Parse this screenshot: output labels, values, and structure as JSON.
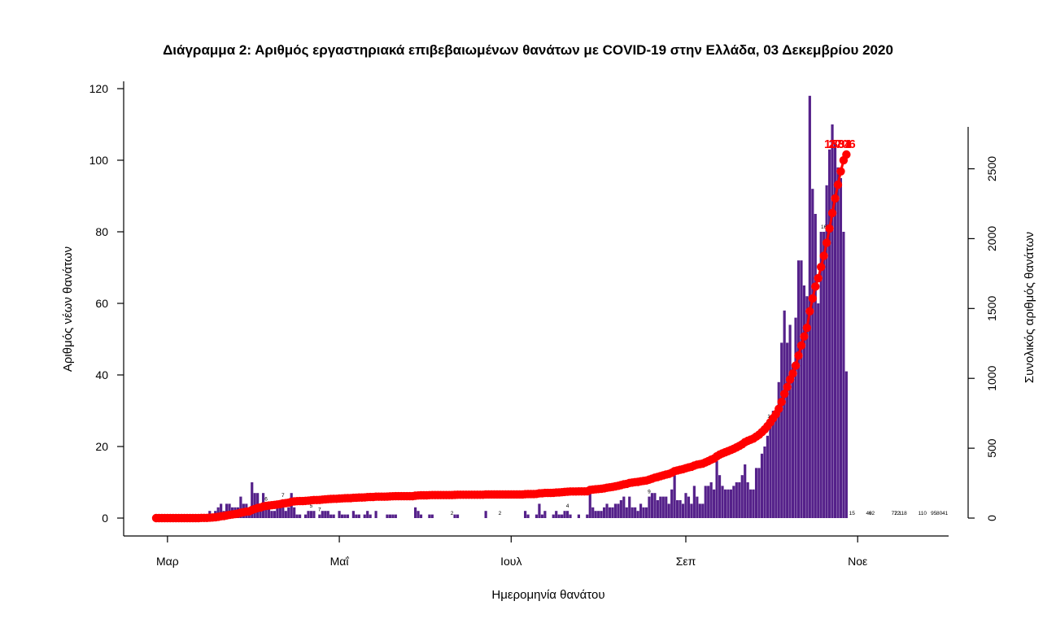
{
  "chart_data": {
    "type": "bar+line",
    "title": "Διάγραμμα 2: Αριθμός εργαστηριακά επιβεβαιωμένων θανάτων με COVID-19 στην Ελλάδα, 03 Δεκεμβρίου 2020",
    "xlabel": "Ημερομηνία θανάτου",
    "ylabel_left": "Αριθμός νέων θανάτων",
    "ylabel_right": "Συνολικός αριθμός θανάτων",
    "x_start": "2020-02-26",
    "x_end": "2020-12-02",
    "x_tick_labels": [
      {
        "date": "2020-03-01",
        "label": "Μαρ"
      },
      {
        "date": "2020-05-01",
        "label": "Μαΐ"
      },
      {
        "date": "2020-07-01",
        "label": "Ιουλ"
      },
      {
        "date": "2020-09-01",
        "label": "Σεπ"
      },
      {
        "date": "2020-11-01",
        "label": "Νοε"
      }
    ],
    "ylim_left": [
      0,
      120
    ],
    "yticks_left": [
      0,
      20,
      40,
      60,
      80,
      100,
      120
    ],
    "ylim_right": [
      0,
      2800
    ],
    "yticks_right": [
      0,
      500,
      1000,
      1500,
      2000,
      2500
    ],
    "bar_color": "#55218a",
    "line_color": "#ff0000",
    "daily_deaths": [
      0,
      0,
      0,
      0,
      0,
      0,
      0,
      0,
      0,
      0,
      0,
      0,
      0,
      0,
      0,
      0,
      1,
      0,
      0,
      2,
      1,
      2,
      3,
      4,
      2,
      4,
      4,
      3,
      3,
      3,
      6,
      4,
      4,
      2,
      10,
      7,
      7,
      4,
      7,
      4,
      3,
      2,
      2,
      3,
      3,
      5,
      2,
      3,
      7,
      3,
      1,
      1,
      0,
      1,
      2,
      2,
      2,
      0,
      1,
      2,
      2,
      2,
      1,
      1,
      0,
      2,
      1,
      1,
      1,
      0,
      2,
      1,
      1,
      0,
      1,
      2,
      1,
      0,
      2,
      0,
      0,
      0,
      1,
      1,
      1,
      1,
      0,
      0,
      0,
      0,
      0,
      0,
      3,
      2,
      1,
      0,
      0,
      1,
      1,
      0,
      0,
      0,
      0,
      0,
      0,
      0,
      1,
      1,
      0,
      0,
      0,
      0,
      0,
      0,
      0,
      0,
      0,
      2,
      0,
      0,
      0,
      0,
      0,
      0,
      0,
      0,
      0,
      0,
      0,
      0,
      0,
      2,
      1,
      0,
      0,
      1,
      4,
      1,
      2,
      0,
      0,
      1,
      2,
      1,
      1,
      2,
      2,
      1,
      0,
      0,
      1,
      0,
      0,
      1,
      9,
      3,
      2,
      2,
      2,
      3,
      4,
      3,
      3,
      4,
      4,
      5,
      6,
      3,
      6,
      3,
      3,
      2,
      4,
      3,
      3,
      6,
      7,
      7,
      5,
      6,
      6,
      6,
      4,
      8,
      12,
      5,
      5,
      4,
      7,
      6,
      4,
      9,
      6,
      4,
      4,
      9,
      9,
      10,
      8,
      16,
      12,
      9,
      8,
      8,
      8,
      9,
      10,
      10,
      12,
      15,
      10,
      8,
      8,
      14,
      14,
      18,
      20,
      23,
      27,
      30,
      29,
      38,
      49,
      58,
      49,
      54,
      43,
      56,
      72,
      72,
      65,
      62,
      118,
      92,
      85,
      60,
      80,
      80,
      93,
      103,
      110,
      105,
      98,
      95,
      80,
      41
    ],
    "daily_labels": [
      {
        "date": "2020-11-17",
        "text": "118"
      },
      {
        "date": "2020-11-24",
        "text": "110"
      },
      {
        "date": "2020-11-28",
        "text": "95"
      },
      {
        "date": "2020-11-30",
        "text": "80"
      },
      {
        "date": "2020-12-02",
        "text": "41"
      },
      {
        "date": "2020-11-14",
        "text": "72"
      },
      {
        "date": "2020-11-15",
        "text": "72"
      },
      {
        "date": "2020-11-06",
        "text": "62"
      },
      {
        "date": "2020-11-05",
        "text": "49"
      },
      {
        "date": "2020-10-30",
        "text": "15"
      },
      {
        "date": "2020-10-20",
        "text": "16"
      },
      {
        "date": "2020-10-01",
        "text": "12"
      },
      {
        "date": "2020-04-10",
        "text": "10"
      },
      {
        "date": "2020-04-11",
        "text": "7"
      },
      {
        "date": "2020-04-13",
        "text": "7"
      },
      {
        "date": "2020-04-24",
        "text": "7"
      },
      {
        "date": "2020-04-21",
        "text": "5"
      },
      {
        "date": "2020-04-05",
        "text": "6"
      },
      {
        "date": "2020-06-10",
        "text": "2"
      },
      {
        "date": "2020-06-27",
        "text": "2"
      },
      {
        "date": "2020-07-21",
        "text": "4"
      },
      {
        "date": "2020-08-19",
        "text": "9"
      }
    ],
    "cumulative_labels": [
      {
        "date": "2020-10-31",
        "text": "684"
      },
      {
        "date": "2020-11-15",
        "text": "1331"
      },
      {
        "date": "2020-12-02",
        "text": "2706"
      }
    ],
    "grid": false,
    "legend": "none"
  }
}
